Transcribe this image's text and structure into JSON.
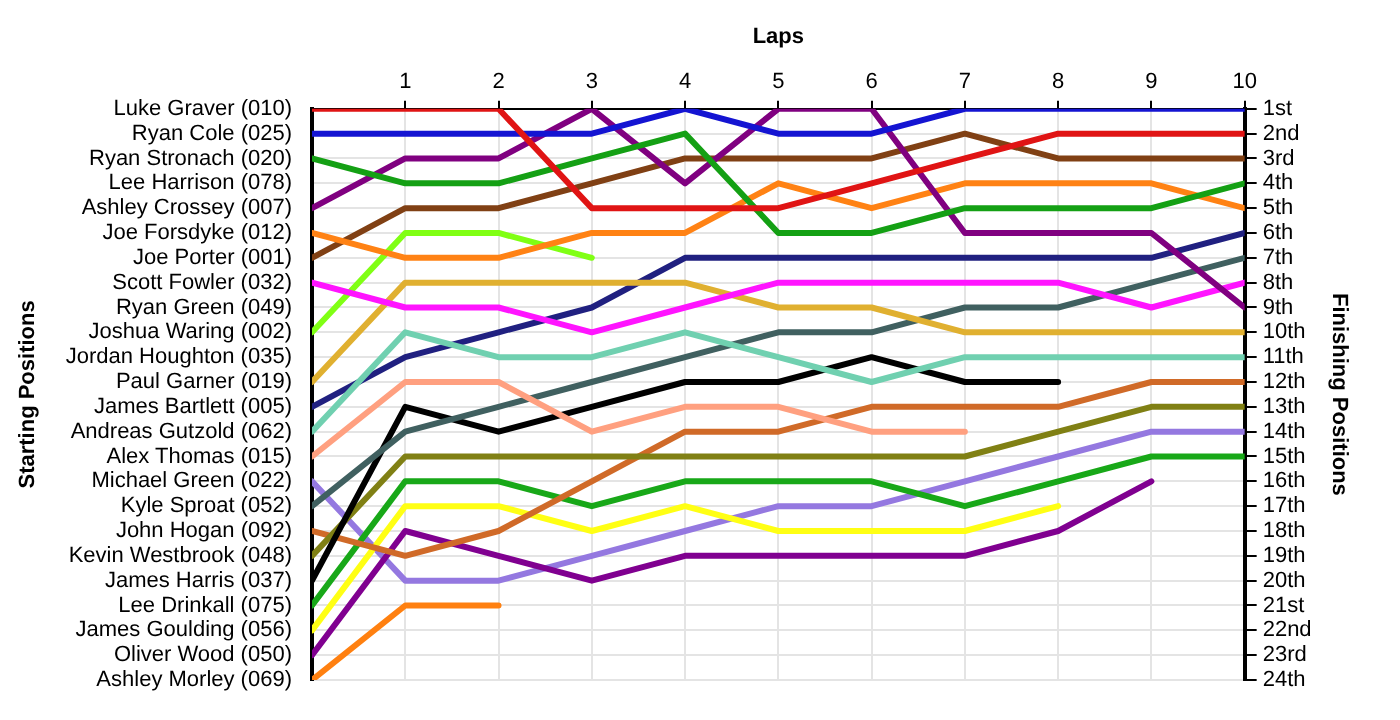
{
  "chart_data": {
    "type": "line",
    "xlabel": "Laps",
    "ylabel": "Finishing Positions",
    "x": [
      0,
      1,
      2,
      3,
      4,
      5,
      6,
      7,
      8,
      9,
      10
    ],
    "xlim": [
      0,
      10
    ],
    "xticks": [
      1,
      2,
      3,
      4,
      5,
      6,
      7,
      8,
      9,
      10
    ],
    "ylim": [
      24,
      1
    ],
    "yticks": [
      {
        "value": 1,
        "label": "1st"
      },
      {
        "value": 2,
        "label": "2nd"
      },
      {
        "value": 3,
        "label": "3rd"
      },
      {
        "value": 4,
        "label": "4th"
      },
      {
        "value": 5,
        "label": "5th"
      },
      {
        "value": 6,
        "label": "6th"
      },
      {
        "value": 7,
        "label": "7th"
      },
      {
        "value": 8,
        "label": "8th"
      },
      {
        "value": 9,
        "label": "9th"
      },
      {
        "value": 10,
        "label": "10th"
      },
      {
        "value": 11,
        "label": "11th"
      },
      {
        "value": 12,
        "label": "12th"
      },
      {
        "value": 13,
        "label": "13th"
      },
      {
        "value": 14,
        "label": "14th"
      },
      {
        "value": 15,
        "label": "15th"
      },
      {
        "value": 16,
        "label": "16th"
      },
      {
        "value": 17,
        "label": "17th"
      },
      {
        "value": 18,
        "label": "18th"
      },
      {
        "value": 19,
        "label": "19th"
      },
      {
        "value": 20,
        "label": "20th"
      },
      {
        "value": 21,
        "label": "21st"
      },
      {
        "value": 22,
        "label": "22nd"
      },
      {
        "value": 23,
        "label": "23rd"
      },
      {
        "value": 24,
        "label": "24th"
      }
    ],
    "annotations": [
      "Starting Positions",
      "Luke Graver (010)",
      "Ryan Cole (025)",
      "Ryan Stronach (020)",
      "Lee Harrison (078)",
      "Ashley Crossey (007)",
      "Joe Forsdyke (012)",
      "Joe Porter (001)",
      "Scott Fowler (032)",
      "Ryan Green (049)",
      "Joshua Waring (002)",
      "Jordan Houghton (035)",
      "Paul Garner (019)",
      "James Bartlett (005)",
      "Andreas Gutzold (062)",
      "Alex Thomas (015)",
      "Michael Green (022)",
      "Kyle Sproat (052)",
      "John Hogan (092)",
      "Kevin Westbrook (048)",
      "James Harris (037)",
      "Lee Drinkall (075)",
      "James Goulding (056)",
      "Oliver Wood (050)",
      "Ashley Morley (069)"
    ],
    "grid": true,
    "legend": false,
    "marker": "none",
    "line_style": "solid",
    "series": [
      {
        "color": "#e01414",
        "values": [
          1,
          1,
          1,
          5,
          5,
          5,
          4,
          3,
          2,
          2,
          2
        ]
      },
      {
        "color": "#1414d2",
        "values": [
          2,
          2,
          2,
          2,
          1,
          2,
          2,
          1,
          1,
          1,
          1
        ]
      },
      {
        "color": "#14a014",
        "values": [
          3,
          4,
          4,
          3,
          2,
          6,
          6,
          5,
          5,
          5,
          4
        ]
      },
      {
        "color": "#800080",
        "values": [
          5,
          3,
          3,
          1,
          4,
          1,
          1,
          6,
          6,
          6,
          9
        ]
      },
      {
        "color": "#ff8214",
        "values": [
          6,
          7,
          7,
          6,
          6,
          4,
          5,
          4,
          4,
          4,
          5
        ]
      },
      {
        "color": "#804014",
        "values": [
          7,
          5,
          5,
          4,
          3,
          3,
          3,
          2,
          3,
          3,
          3
        ]
      },
      {
        "color": "#ff14ff",
        "values": [
          8,
          9,
          9,
          10,
          9,
          8,
          8,
          8,
          8,
          9,
          8
        ]
      },
      {
        "color": "#80ff14",
        "values": [
          10,
          6,
          6,
          7,
          null,
          null,
          null,
          null,
          null,
          null,
          null
        ]
      },
      {
        "color": "#e0b030",
        "values": [
          12,
          8,
          8,
          8,
          8,
          9,
          9,
          10,
          10,
          10,
          10
        ]
      },
      {
        "color": "#70d0b0",
        "values": [
          14,
          10,
          11,
          11,
          10,
          11,
          12,
          11,
          11,
          11,
          11
        ]
      },
      {
        "color": "#202080",
        "values": [
          13,
          11,
          10,
          9,
          7,
          7,
          7,
          7,
          7,
          7,
          6
        ]
      },
      {
        "color": "#ffa080",
        "values": [
          15,
          12,
          12,
          14,
          13,
          13,
          14,
          14,
          null,
          null,
          null
        ]
      },
      {
        "color": "#406060",
        "values": [
          17,
          14,
          13,
          12,
          11,
          10,
          10,
          9,
          9,
          8,
          7
        ]
      },
      {
        "color": "#000000",
        "values": [
          20,
          13,
          14,
          13,
          12,
          12,
          11,
          12,
          12,
          null,
          null
        ]
      },
      {
        "color": "#808014",
        "values": [
          19,
          15,
          15,
          15,
          15,
          15,
          15,
          15,
          14,
          13,
          13
        ]
      },
      {
        "color": "#d06a28",
        "values": [
          18,
          19,
          18,
          16,
          14,
          14,
          13,
          13,
          13,
          12,
          12
        ]
      },
      {
        "color": "#18a818",
        "values": [
          21,
          16,
          16,
          17,
          16,
          16,
          16,
          17,
          16,
          15,
          15
        ]
      },
      {
        "color": "#ffff14",
        "values": [
          22,
          17,
          17,
          18,
          17,
          18,
          18,
          18,
          17,
          null,
          null
        ]
      },
      {
        "color": "#800090",
        "values": [
          23,
          18,
          19,
          20,
          19,
          19,
          19,
          19,
          18,
          16,
          null
        ]
      },
      {
        "color": "#9478e0",
        "values": [
          16,
          20,
          20,
          19,
          18,
          17,
          17,
          16,
          15,
          14,
          14
        ]
      },
      {
        "color": "#ff8010",
        "values": [
          24,
          21,
          21,
          null,
          null,
          null,
          null,
          null,
          null,
          null,
          null
        ]
      }
    ]
  }
}
